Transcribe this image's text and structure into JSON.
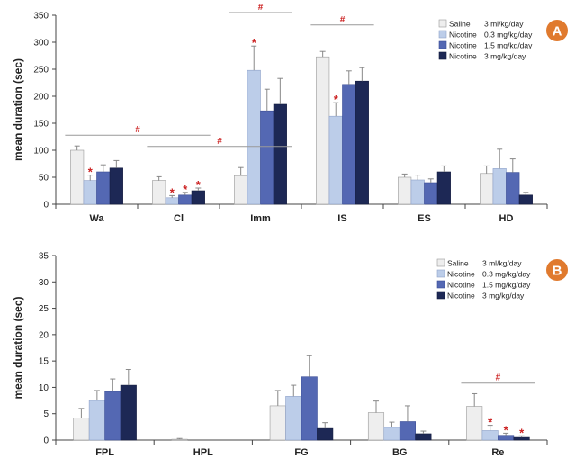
{
  "colors": {
    "saline": "#eeeeee",
    "nic_03": "#bccde9",
    "nic_15": "#5468b3",
    "nic_3": "#1d2855",
    "significance": "#cc2222",
    "badge": "#e07a2e"
  },
  "chart_data": [
    {
      "panel": "A",
      "type": "bar",
      "ylabel": "mean duration (sec)",
      "ylim": [
        0,
        350
      ],
      "yticks": [
        "0",
        "50",
        "100",
        "150",
        "200",
        "250",
        "300",
        "350"
      ],
      "categories": [
        "Wa",
        "Cl",
        "Imm",
        "IS",
        "ES",
        "HD"
      ],
      "series": [
        {
          "name": "Saline",
          "dose": "3 ml/kg/day",
          "values": [
            100,
            44,
            53,
            273,
            50,
            57
          ],
          "errors": [
            8,
            7,
            15,
            10,
            6,
            14
          ]
        },
        {
          "name": "Nicotine",
          "dose": "0.3 mg/kg/day",
          "values": [
            44,
            12,
            248,
            163,
            45,
            66
          ],
          "errors": [
            10,
            4,
            45,
            25,
            9,
            36
          ]
        },
        {
          "name": "Nicotine",
          "dose": "1.5 mg/kg/day",
          "values": [
            60,
            17,
            173,
            222,
            40,
            59
          ],
          "errors": [
            13,
            5,
            40,
            25,
            7,
            25
          ]
        },
        {
          "name": "Nicotine",
          "dose": "3 mg/kg/day",
          "values": [
            67,
            25,
            185,
            228,
            60,
            17
          ],
          "errors": [
            14,
            5,
            48,
            25,
            11,
            5
          ]
        }
      ],
      "stars": [
        [
          0,
          1
        ],
        [
          1,
          1
        ],
        [
          1,
          2
        ],
        [
          1,
          3
        ],
        [
          2,
          1
        ],
        [
          3,
          1
        ]
      ],
      "hash_lines": [
        {
          "from": 0,
          "to": 1,
          "label": "#",
          "y": 128
        },
        {
          "from": 1,
          "to": 2,
          "label": "#",
          "y": 107
        },
        {
          "from": 2,
          "to": 2,
          "label": "#",
          "y": 355
        },
        {
          "from": 3,
          "to": 3,
          "label": "#",
          "y": 332
        }
      ],
      "badge": "A"
    },
    {
      "panel": "B",
      "type": "bar",
      "ylabel": "mean duration (sec)",
      "ylim": [
        0,
        35
      ],
      "yticks": [
        "0",
        "5",
        "10",
        "15",
        "20",
        "25",
        "30",
        "35"
      ],
      "categories": [
        "FPL",
        "HPL",
        "FG",
        "BG",
        "Re"
      ],
      "series": [
        {
          "name": "Saline",
          "dose": "3 ml/kg/day",
          "values": [
            4.2,
            0.15,
            6.5,
            5.2,
            6.4
          ],
          "errors": [
            1.8,
            0.15,
            2.9,
            2.2,
            2.4
          ]
        },
        {
          "name": "Nicotine",
          "dose": "0.3 mg/kg/day",
          "values": [
            7.5,
            0,
            8.3,
            2.4,
            1.8
          ],
          "errors": [
            1.9,
            0,
            2.1,
            1.0,
            1.0
          ]
        },
        {
          "name": "Nicotine",
          "dose": "1.5 mg/kg/day",
          "values": [
            9.2,
            0,
            12.0,
            3.5,
            0.9
          ],
          "errors": [
            2.4,
            0,
            4.0,
            3.0,
            0.4
          ]
        },
        {
          "name": "Nicotine",
          "dose": "3 mg/kg/day",
          "values": [
            10.4,
            0,
            2.2,
            1.2,
            0.5
          ],
          "errors": [
            3.0,
            0,
            1.1,
            0.5,
            0.3
          ]
        }
      ],
      "stars": [
        [
          4,
          1
        ],
        [
          4,
          2
        ],
        [
          4,
          3
        ]
      ],
      "hash_lines": [
        {
          "from": 4,
          "to": 4,
          "label": "#",
          "y": 10.8
        }
      ],
      "badge": "B"
    }
  ]
}
